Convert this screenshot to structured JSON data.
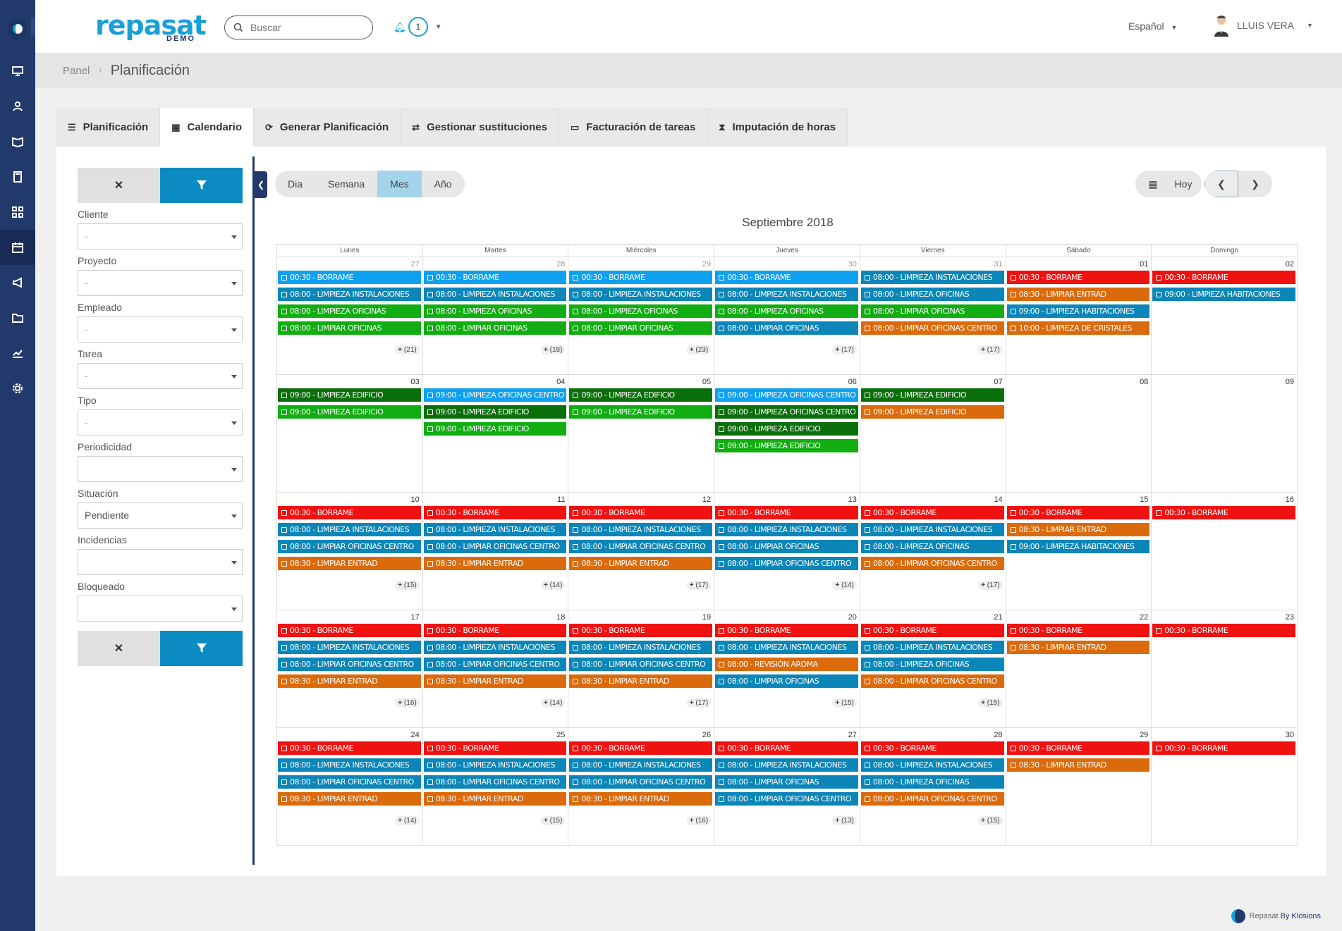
{
  "app": {
    "logo": "repasat",
    "logo_sub": "DEMO",
    "search_placeholder": "Buscar",
    "notifications": "1",
    "language": "Español",
    "user": "LLUIS VERA"
  },
  "breadcrumb": {
    "root": "Panel",
    "current": "Planificación"
  },
  "tabs": [
    {
      "label": "Planificación",
      "icon": "list-icon"
    },
    {
      "label": "Calendario",
      "icon": "calendar-icon"
    },
    {
      "label": "Generar Planificación",
      "icon": "refresh-icon"
    },
    {
      "label": "Gestionar sustituciones",
      "icon": "exchange-icon"
    },
    {
      "label": "Facturación de tareas",
      "icon": "money-icon"
    },
    {
      "label": "Imputación de horas",
      "icon": "hourglass-icon"
    }
  ],
  "active_tab": "Calendario",
  "filters": {
    "fields": [
      {
        "label": "Cliente",
        "value": "-",
        "placeholder": true
      },
      {
        "label": "Proyecto",
        "value": "-",
        "placeholder": true
      },
      {
        "label": "Empleado",
        "value": "-",
        "placeholder": true
      },
      {
        "label": "Tarea",
        "value": "-",
        "placeholder": true
      },
      {
        "label": "Tipo",
        "value": "-",
        "placeholder": true
      },
      {
        "label": "Periodicidad",
        "value": "",
        "placeholder": false
      },
      {
        "label": "Situación",
        "value": "Pendiente",
        "placeholder": false
      },
      {
        "label": "Incidencias",
        "value": "",
        "placeholder": false
      },
      {
        "label": "Bloqueado",
        "value": "",
        "placeholder": false
      }
    ]
  },
  "views": [
    "Dia",
    "Semana",
    "Mes",
    "Año"
  ],
  "active_view": "Mes",
  "nav": {
    "today": "Hoy"
  },
  "calendar": {
    "title": "Septiembre 2018",
    "weekdays": [
      "Lunes",
      "Martes",
      "Miércoles",
      "Jueves",
      "Viernes",
      "Sábado",
      "Domingo"
    ],
    "colors": {
      "blue": "#0fa0ef",
      "teal": "#0c86b8",
      "green": "#12ad12",
      "dkgreen": "#0a6e0a",
      "red": "#f01111",
      "orange": "#da6a0c"
    },
    "weeks": [
      [
        {
          "n": "27",
          "other": true,
          "ev": [
            [
              "blue",
              "00:30 - BORRAME"
            ],
            [
              "teal",
              "08:00 - LIMPIEZA INSTALACIONES"
            ],
            [
              "green",
              "08:00 - LIMPIEZA OFICINAS"
            ],
            [
              "green",
              "08:00 - LIMPIAR OFICINAS"
            ]
          ],
          "more": "(21)"
        },
        {
          "n": "28",
          "other": true,
          "ev": [
            [
              "blue",
              "00:30 - BORRAME"
            ],
            [
              "teal",
              "08:00 - LIMPIEZA INSTALACIONES"
            ],
            [
              "green",
              "08:00 - LIMPIEZA OFICINAS"
            ],
            [
              "green",
              "08:00 - LIMPIAR OFICINAS"
            ]
          ],
          "more": "(18)"
        },
        {
          "n": "29",
          "other": true,
          "ev": [
            [
              "blue",
              "00:30 - BORRAME"
            ],
            [
              "teal",
              "08:00 - LIMPIEZA INSTALACIONES"
            ],
            [
              "green",
              "08:00 - LIMPIEZA OFICINAS"
            ],
            [
              "green",
              "08:00 - LIMPIAR OFICINAS"
            ]
          ],
          "more": "(23)"
        },
        {
          "n": "30",
          "other": true,
          "ev": [
            [
              "blue",
              "00:30 - BORRAME"
            ],
            [
              "teal",
              "08:00 - LIMPIEZA INSTALACIONES"
            ],
            [
              "green",
              "08:00 - LIMPIEZA OFICINAS"
            ],
            [
              "teal",
              "08:00 - LIMPIAR OFICINAS"
            ]
          ],
          "more": "(17)"
        },
        {
          "n": "31",
          "other": true,
          "ev": [
            [
              "teal",
              "08:00 - LIMPIEZA INSTALACIONES"
            ],
            [
              "teal",
              "08:00 - LIMPIEZA OFICINAS"
            ],
            [
              "green",
              "08:00 - LIMPIAR OFICINAS"
            ],
            [
              "orange",
              "08:00 - LIMPIAR OFICINAS CENTRO"
            ]
          ],
          "more": "(17)"
        },
        {
          "n": "01",
          "other": false,
          "ev": [
            [
              "red",
              "00:30 - BORRAME"
            ],
            [
              "orange",
              "08:30 - LIMPIAR ENTRAD"
            ],
            [
              "teal",
              "09:00 - LIMPIEZA HABITACIONES"
            ],
            [
              "orange",
              "10:00 - LIMPIEZA DE CRISTALES"
            ]
          ],
          "more": ""
        },
        {
          "n": "02",
          "other": false,
          "ev": [
            [
              "red",
              "00:30 - BORRAME"
            ],
            [
              "teal",
              "09:00 - LIMPIEZA HABITACIONES"
            ]
          ],
          "more": ""
        }
      ],
      [
        {
          "n": "03",
          "other": false,
          "ev": [
            [
              "dkgreen",
              "09:00 - LIMPIEZA EDIFICIO"
            ],
            [
              "green",
              "09:00 - LIMPIEZA EDIFICIO"
            ]
          ],
          "more": ""
        },
        {
          "n": "04",
          "other": false,
          "ev": [
            [
              "blue",
              "09:00 - LIMPIEZA OFICINAS CENTRO"
            ],
            [
              "dkgreen",
              "09:00 - LIMPIEZA EDIFICIO"
            ],
            [
              "green",
              "09:00 - LIMPIEZA EDIFICIO"
            ]
          ],
          "more": ""
        },
        {
          "n": "05",
          "other": false,
          "ev": [
            [
              "dkgreen",
              "09:00 - LIMPIEZA EDIFICIO"
            ],
            [
              "green",
              "09:00 - LIMPIEZA EDIFICIO"
            ]
          ],
          "more": ""
        },
        {
          "n": "06",
          "other": false,
          "ev": [
            [
              "blue",
              "09:00 - LIMPIEZA OFICINAS CENTRO"
            ],
            [
              "dkgreen",
              "09:00 - LIMPIEZA OFICINAS CENTRO"
            ],
            [
              "dkgreen",
              "09:00 - LIMPIEZA EDIFICIO"
            ],
            [
              "green",
              "09:00 - LIMPIEZA EDIFICIO"
            ]
          ],
          "more": ""
        },
        {
          "n": "07",
          "other": false,
          "ev": [
            [
              "dkgreen",
              "09:00 - LIMPIEZA EDIFICIO"
            ],
            [
              "orange",
              "09:00 - LIMPIEZA EDIFICIO"
            ]
          ],
          "more": ""
        },
        {
          "n": "08",
          "other": false,
          "ev": [],
          "more": ""
        },
        {
          "n": "09",
          "other": false,
          "ev": [],
          "more": ""
        }
      ],
      [
        {
          "n": "10",
          "other": false,
          "ev": [
            [
              "red",
              "00:30 - BORRAME"
            ],
            [
              "teal",
              "08:00 - LIMPIEZA INSTALACIONES"
            ],
            [
              "teal",
              "08:00 - LIMPIAR OFICINAS CENTRO"
            ],
            [
              "orange",
              "08:30 - LIMPIAR ENTRAD"
            ]
          ],
          "more": "(15)"
        },
        {
          "n": "11",
          "other": false,
          "ev": [
            [
              "red",
              "00:30 - BORRAME"
            ],
            [
              "teal",
              "08:00 - LIMPIEZA INSTALACIONES"
            ],
            [
              "teal",
              "08:00 - LIMPIAR OFICINAS CENTRO"
            ],
            [
              "orange",
              "08:30 - LIMPIAR ENTRAD"
            ]
          ],
          "more": "(14)"
        },
        {
          "n": "12",
          "other": false,
          "ev": [
            [
              "red",
              "00:30 - BORRAME"
            ],
            [
              "teal",
              "08:00 - LIMPIEZA INSTALACIONES"
            ],
            [
              "teal",
              "08:00 - LIMPIAR OFICINAS CENTRO"
            ],
            [
              "orange",
              "08:30 - LIMPIAR ENTRAD"
            ]
          ],
          "more": "(17)"
        },
        {
          "n": "13",
          "other": false,
          "ev": [
            [
              "red",
              "00:30 - BORRAME"
            ],
            [
              "teal",
              "08:00 - LIMPIEZA INSTALACIONES"
            ],
            [
              "teal",
              "08:00 - LIMPIAR OFICINAS"
            ],
            [
              "teal",
              "08:00 - LIMPIAR OFICINAS CENTRO"
            ]
          ],
          "more": "(14)"
        },
        {
          "n": "14",
          "other": false,
          "ev": [
            [
              "red",
              "00:30 - BORRAME"
            ],
            [
              "teal",
              "08:00 - LIMPIEZA INSTALACIONES"
            ],
            [
              "teal",
              "08:00 - LIMPIEZA OFICINAS"
            ],
            [
              "orange",
              "08:00 - LIMPIAR OFICINAS CENTRO"
            ]
          ],
          "more": "(17)"
        },
        {
          "n": "15",
          "other": false,
          "ev": [
            [
              "red",
              "00:30 - BORRAME"
            ],
            [
              "orange",
              "08:30 - LIMPIAR ENTRAD"
            ],
            [
              "teal",
              "09:00 - LIMPIEZA HABITACIONES"
            ]
          ],
          "more": ""
        },
        {
          "n": "16",
          "other": false,
          "ev": [
            [
              "red",
              "00:30 - BORRAME"
            ]
          ],
          "more": ""
        }
      ],
      [
        {
          "n": "17",
          "other": false,
          "ev": [
            [
              "red",
              "00:30 - BORRAME"
            ],
            [
              "teal",
              "08:00 - LIMPIEZA INSTALACIONES"
            ],
            [
              "teal",
              "08:00 - LIMPIAR OFICINAS CENTRO"
            ],
            [
              "orange",
              "08:30 - LIMPIAR ENTRAD"
            ]
          ],
          "more": "(16)"
        },
        {
          "n": "18",
          "other": false,
          "ev": [
            [
              "red",
              "00:30 - BORRAME"
            ],
            [
              "teal",
              "08:00 - LIMPIEZA INSTALACIONES"
            ],
            [
              "teal",
              "08:00 - LIMPIAR OFICINAS CENTRO"
            ],
            [
              "orange",
              "08:30 - LIMPIAR ENTRAD"
            ]
          ],
          "more": "(14)"
        },
        {
          "n": "19",
          "other": false,
          "ev": [
            [
              "red",
              "00:30 - BORRAME"
            ],
            [
              "teal",
              "08:00 - LIMPIEZA INSTALACIONES"
            ],
            [
              "teal",
              "08:00 - LIMPIAR OFICINAS CENTRO"
            ],
            [
              "orange",
              "08:30 - LIMPIAR ENTRAD"
            ]
          ],
          "more": "(17)"
        },
        {
          "n": "20",
          "other": false,
          "ev": [
            [
              "red",
              "00:30 - BORRAME"
            ],
            [
              "teal",
              "08:00 - LIMPIEZA INSTALACIONES"
            ],
            [
              "orange",
              "08:00 - REVISIÓN AROMA"
            ],
            [
              "teal",
              "08:00 - LIMPIAR OFICINAS"
            ]
          ],
          "more": "(15)"
        },
        {
          "n": "21",
          "other": false,
          "ev": [
            [
              "red",
              "00:30 - BORRAME"
            ],
            [
              "teal",
              "08:00 - LIMPIEZA INSTALACIONES"
            ],
            [
              "teal",
              "08:00 - LIMPIEZA OFICINAS"
            ],
            [
              "orange",
              "08:00 - LIMPIAR OFICINAS CENTRO"
            ]
          ],
          "more": "(15)"
        },
        {
          "n": "22",
          "other": false,
          "ev": [
            [
              "red",
              "00:30 - BORRAME"
            ],
            [
              "orange",
              "08:30 - LIMPIAR ENTRAD"
            ]
          ],
          "more": ""
        },
        {
          "n": "23",
          "other": false,
          "ev": [
            [
              "red",
              "00:30 - BORRAME"
            ]
          ],
          "more": ""
        }
      ],
      [
        {
          "n": "24",
          "other": false,
          "ev": [
            [
              "red",
              "00:30 - BORRAME"
            ],
            [
              "teal",
              "08:00 - LIMPIEZA INSTALACIONES"
            ],
            [
              "teal",
              "08:00 - LIMPIAR OFICINAS CENTRO"
            ],
            [
              "orange",
              "08:30 - LIMPIAR ENTRAD"
            ]
          ],
          "more": "(14)"
        },
        {
          "n": "25",
          "other": false,
          "ev": [
            [
              "red",
              "00:30 - BORRAME"
            ],
            [
              "teal",
              "08:00 - LIMPIEZA INSTALACIONES"
            ],
            [
              "teal",
              "08:00 - LIMPIAR OFICINAS CENTRO"
            ],
            [
              "orange",
              "08:30 - LIMPIAR ENTRAD"
            ]
          ],
          "more": "(15)"
        },
        {
          "n": "26",
          "other": false,
          "ev": [
            [
              "red",
              "00:30 - BORRAME"
            ],
            [
              "teal",
              "08:00 - LIMPIEZA INSTALACIONES"
            ],
            [
              "teal",
              "08:00 - LIMPIAR OFICINAS CENTRO"
            ],
            [
              "orange",
              "08:30 - LIMPIAR ENTRAD"
            ]
          ],
          "more": "(16)"
        },
        {
          "n": "27",
          "other": false,
          "ev": [
            [
              "red",
              "00:30 - BORRAME"
            ],
            [
              "teal",
              "08:00 - LIMPIEZA INSTALACIONES"
            ],
            [
              "teal",
              "08:00 - LIMPIAR OFICINAS"
            ],
            [
              "teal",
              "08:00 - LIMPIAR OFICINAS CENTRO"
            ]
          ],
          "more": "(13)"
        },
        {
          "n": "28",
          "other": false,
          "ev": [
            [
              "red",
              "00:30 - BORRAME"
            ],
            [
              "teal",
              "08:00 - LIMPIEZA INSTALACIONES"
            ],
            [
              "teal",
              "08:00 - LIMPIEZA OFICINAS"
            ],
            [
              "orange",
              "08:00 - LIMPIAR OFICINAS CENTRO"
            ]
          ],
          "more": "(15)"
        },
        {
          "n": "29",
          "other": false,
          "ev": [
            [
              "red",
              "00:30 - BORRAME"
            ],
            [
              "orange",
              "08:30 - LIMPIAR ENTRAD"
            ]
          ],
          "more": ""
        },
        {
          "n": "30",
          "other": false,
          "ev": [
            [
              "red",
              "00:30 - BORRAME"
            ]
          ],
          "more": ""
        }
      ]
    ]
  },
  "footer": {
    "text": "Repasat",
    "by": "By Klosions"
  }
}
